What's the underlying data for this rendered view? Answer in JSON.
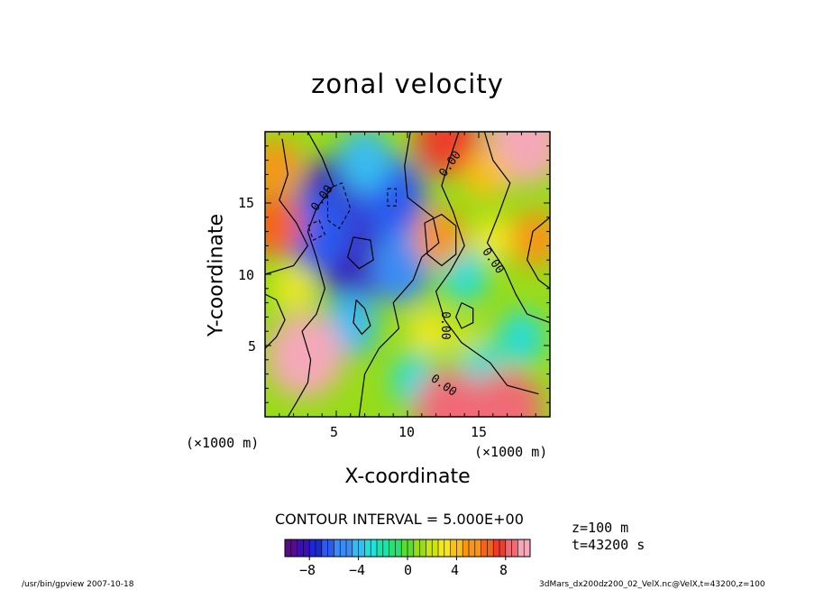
{
  "chart_data": {
    "type": "heatmap",
    "title": "zonal velocity",
    "xlabel": "X-coordinate",
    "ylabel": "Y-coordinate",
    "x_unit": "(×1000 m)",
    "y_unit": "(×1000 m)",
    "xlim": [
      0,
      20
    ],
    "ylim": [
      0,
      20
    ],
    "x_ticks": [
      5,
      10,
      15
    ],
    "y_ticks": [
      5,
      10,
      15
    ],
    "contour_interval_text": "CONTOUR INTERVAL = 5.000E+00",
    "contour_labels": [
      "0.00",
      "0.00",
      "0.00",
      "0.00",
      "0.00"
    ],
    "colorbar": {
      "min": -10,
      "max": 10,
      "ticks": [
        -8,
        -4,
        0,
        4,
        8
      ],
      "tick_labels": [
        "−8",
        "−4",
        "0",
        "4",
        "8"
      ]
    },
    "features": [
      {
        "kind": "low",
        "x": 5.2,
        "y": 14.8,
        "value": -8
      },
      {
        "kind": "low",
        "x": 6.4,
        "y": 11.6,
        "value": -8
      },
      {
        "kind": "low",
        "x": 3.8,
        "y": 13.1,
        "value": -6
      },
      {
        "kind": "low",
        "x": 8.9,
        "y": 15.4,
        "value": -6
      },
      {
        "kind": "low",
        "x": 9.5,
        "y": 10.5,
        "value": -5
      },
      {
        "kind": "low",
        "x": 6.0,
        "y": 6.5,
        "value": -4
      },
      {
        "kind": "low",
        "x": 14.0,
        "y": 10.0,
        "value": -3
      },
      {
        "kind": "low",
        "x": 15.0,
        "y": 3.5,
        "value": -3
      },
      {
        "kind": "low",
        "x": 18.0,
        "y": 5.5,
        "value": -3
      },
      {
        "kind": "low",
        "x": 10.5,
        "y": 2.5,
        "value": -3
      },
      {
        "kind": "low",
        "x": 7.0,
        "y": 18.0,
        "value": -4
      },
      {
        "kind": "high",
        "x": 2.8,
        "y": 4.3,
        "value": 9
      },
      {
        "kind": "high",
        "x": 13.0,
        "y": 0.6,
        "value": 8
      },
      {
        "kind": "high",
        "x": 17.0,
        "y": 0.6,
        "value": 8
      },
      {
        "kind": "high",
        "x": 18.3,
        "y": 19.3,
        "value": 9
      },
      {
        "kind": "high",
        "x": 12.8,
        "y": 19.4,
        "value": 7
      },
      {
        "kind": "high",
        "x": 0.6,
        "y": 13.4,
        "value": 6
      },
      {
        "kind": "high",
        "x": 0.8,
        "y": 17.5,
        "value": 5
      },
      {
        "kind": "high",
        "x": 12.2,
        "y": 12.6,
        "value": 5
      },
      {
        "kind": "high",
        "x": 15.5,
        "y": 17.0,
        "value": 4
      },
      {
        "kind": "high",
        "x": 19.0,
        "y": 12.5,
        "value": 5
      },
      {
        "kind": "high",
        "x": 16.0,
        "y": 12.5,
        "value": 3
      },
      {
        "kind": "high",
        "x": 11.5,
        "y": 6.0,
        "value": 3
      },
      {
        "kind": "high",
        "x": 2.0,
        "y": 9.0,
        "value": 3
      },
      {
        "kind": "high",
        "x": 14.0,
        "y": 5.5,
        "value": 2
      }
    ]
  },
  "info": {
    "z": "z=100  m",
    "t": "t=43200  s"
  },
  "footer": {
    "left": "/usr/bin/gpview   2007-10-18",
    "right": "3dMars_dx200dz200_02_VelX.nc@VelX,t=43200,z=100"
  },
  "colors": {
    "scale": [
      "#5a0a8c",
      "#3a10b4",
      "#1a2ad2",
      "#2a5aee",
      "#3a8cf4",
      "#38bcf0",
      "#28dcd8",
      "#18e6a8",
      "#28e070",
      "#58dc30",
      "#98dc18",
      "#cce410",
      "#f4e81c",
      "#f8c018",
      "#f89418",
      "#f46418",
      "#ec3c2c",
      "#f06a76",
      "#f4a8b8"
    ]
  }
}
